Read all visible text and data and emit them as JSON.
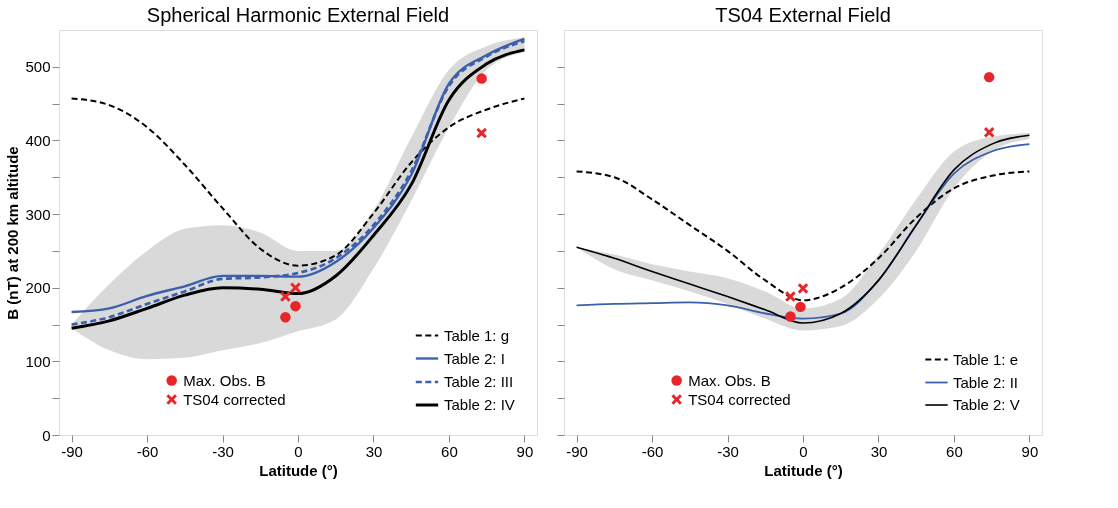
{
  "chart_data": [
    {
      "type": "line",
      "title": "Spherical Harmonic External Field",
      "xlabel": "Latitude (°)",
      "ylabel": "B (nT) at 200 km altitude",
      "x": [
        -90,
        -75,
        -60,
        -45,
        -30,
        -15,
        0,
        15,
        30,
        45,
        60,
        75,
        90
      ],
      "series": [
        {
          "name": "Table 1: g",
          "color": "#000000",
          "line_style": "dashed",
          "values": [
            457,
            448,
            418,
            367,
            308,
            253,
            230,
            244,
            301,
            370,
            418,
            442,
            457
          ]
        },
        {
          "name": "Table 2: I",
          "color": "#3a5fad",
          "line_style": "solid",
          "values": [
            167,
            172,
            189,
            202,
            216,
            216,
            215,
            235,
            281,
            353,
            477,
            516,
            538
          ]
        },
        {
          "name": "Table 2: III",
          "color": "#3a5fad",
          "line_style": "dashed",
          "values": [
            150,
            160,
            178,
            195,
            212,
            214,
            220,
            240,
            285,
            358,
            474,
            514,
            535
          ]
        },
        {
          "name": "Table 2: IV",
          "color": "#000000",
          "line_style": "solid",
          "values": [
            145,
            155,
            172,
            190,
            200,
            198,
            192,
            216,
            271,
            340,
            455,
            504,
            523
          ],
          "lower": [
            145,
            115,
            103,
            105,
            115,
            125,
            141,
            157,
            226,
            318,
            418,
            496,
            520
          ],
          "upper": [
            150,
            205,
            250,
            280,
            285,
            275,
            250,
            250,
            305,
            404,
            496,
            528,
            540
          ]
        },
        {
          "name": "Max. Obs. B",
          "type": "scatter",
          "marker": "circle",
          "color": "#e8262a",
          "x": [
            -5,
            -1,
            73
          ],
          "values": [
            160,
            175,
            484
          ]
        },
        {
          "name": "TS04 corrected",
          "type": "scatter",
          "marker": "cross",
          "color": "#e8262a",
          "x": [
            -5,
            -1,
            73
          ],
          "values": [
            188,
            200,
            410
          ]
        }
      ],
      "xlim": [
        -95,
        95
      ],
      "xticks": [
        -90,
        -60,
        -30,
        0,
        30,
        60,
        90
      ],
      "ylim": [
        0,
        550
      ],
      "yticks": [
        0,
        {
          "value": 50,
          "label": null
        },
        100,
        {
          "value": 150,
          "label": null
        },
        200,
        {
          "value": 250,
          "label": null
        },
        300,
        {
          "value": 350,
          "label": null
        },
        400,
        {
          "value": 450,
          "label": null
        },
        500
      ],
      "legend": "bottom right",
      "grid": false
    },
    {
      "type": "line",
      "title": "TS04 External Field",
      "xlabel": "Latitude (°)",
      "x": [
        -90,
        -75,
        -60,
        -45,
        -30,
        -15,
        0,
        15,
        30,
        45,
        60,
        75,
        90
      ],
      "series": [
        {
          "name": "Table 1: e",
          "color": "#000000",
          "line_style": "dashed",
          "values": [
            358,
            350,
            320,
            285,
            250,
            210,
            183,
            200,
            240,
            295,
            335,
            352,
            358
          ]
        },
        {
          "name": "Table 2: II",
          "color": "#3a5fad",
          "line_style": "solid",
          "values": [
            176,
            178,
            179,
            180,
            176,
            165,
            158,
            165,
            210,
            285,
            355,
            385,
            395
          ]
        },
        {
          "name": "Table 2: V",
          "color": "#000000",
          "line_style": "solid",
          "values": [
            255,
            240,
            222,
            205,
            188,
            170,
            152,
            165,
            210,
            285,
            360,
            395,
            407
          ],
          "lower": [
            255,
            225,
            210,
            195,
            178,
            158,
            142,
            148,
            185,
            250,
            335,
            385,
            402
          ],
          "upper": [
            255,
            245,
            232,
            222,
            213,
            195,
            172,
            185,
            245,
            320,
            385,
            405,
            410
          ]
        },
        {
          "name": "Max. Obs. B",
          "type": "scatter",
          "marker": "circle",
          "color": "#e8262a",
          "x": [
            -5,
            -1,
            74
          ],
          "values": [
            161,
            174,
            486
          ]
        },
        {
          "name": "TS04 corrected",
          "type": "scatter",
          "marker": "cross",
          "color": "#e8262a",
          "x": [
            -5,
            0,
            74
          ],
          "values": [
            188,
            199,
            411
          ]
        }
      ],
      "xlim": [
        -95,
        95
      ],
      "xticks": [
        -90,
        -60,
        -30,
        0,
        30,
        60,
        90
      ],
      "ylim": [
        0,
        550
      ],
      "yticks": [
        0,
        {
          "value": 50,
          "label": null
        },
        100,
        {
          "value": 150,
          "label": null
        },
        200,
        {
          "value": 250,
          "label": null
        },
        300,
        {
          "value": 350,
          "label": null
        },
        400,
        {
          "value": 450,
          "label": null
        },
        500
      ],
      "tick_labels": "x",
      "legend": "bottom right",
      "grid": false
    }
  ]
}
